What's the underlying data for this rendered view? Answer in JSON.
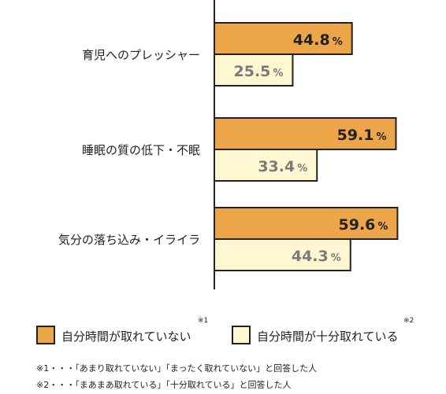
{
  "colors": {
    "primary_fill": "#EDA54A",
    "secondary_fill": "#FFF7D2",
    "primary_text": "#222222",
    "secondary_text": "#7A7A7A",
    "bar_border": "#222222",
    "axis": "#222222"
  },
  "chart_data": {
    "type": "bar",
    "orientation": "horizontal",
    "categories": [
      "育児へのプレッシャー",
      "睡眠の質の低下・不眠",
      "気分の落ち込み・イライラ"
    ],
    "series": [
      {
        "name": "自分時間が取れていない",
        "values": [
          44.8,
          59.1,
          59.6
        ]
      },
      {
        "name": "自分時間が十分取れている",
        "values": [
          25.5,
          33.4,
          44.3
        ]
      }
    ],
    "value_unit": "%",
    "xlim": [
      0,
      70
    ],
    "grid": false,
    "legend_position": "bottom"
  },
  "legend": {
    "items": [
      {
        "label": "自分時間が取れていない",
        "note": "※1"
      },
      {
        "label": "自分時間が十分取れている",
        "note": "※2"
      }
    ]
  },
  "footnotes": [
    "※1・・・「あまり取れていない」「まったく取れていない」と回答した人",
    "※2・・・「まあまあ取れている」「十分取れている」と回答した人"
  ]
}
